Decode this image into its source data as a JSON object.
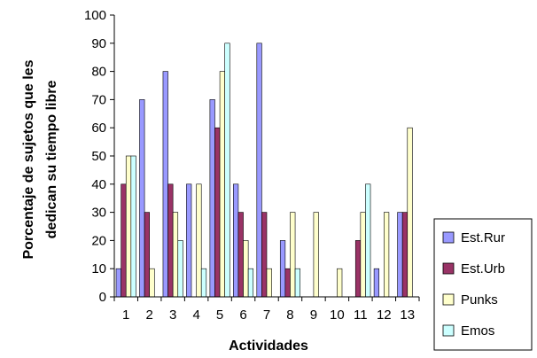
{
  "chart_data": {
    "type": "bar",
    "title": "",
    "xlabel": "Actividades",
    "ylabel_lines": [
      "Porcentaje de sujetos que les",
      "dedican su tiempo libre"
    ],
    "ylim": [
      0,
      100
    ],
    "yticks": [
      0,
      10,
      20,
      30,
      40,
      50,
      60,
      70,
      80,
      90,
      100
    ],
    "grid": false,
    "legend_position": "bottom-right",
    "categories": [
      "1",
      "2",
      "3",
      "4",
      "5",
      "6",
      "7",
      "8",
      "9",
      "10",
      "11",
      "12",
      "13"
    ],
    "series": [
      {
        "name": "Est.Rur",
        "color": "#9999FF",
        "values": [
          10,
          70,
          80,
          40,
          70,
          40,
          90,
          20,
          0,
          0,
          0,
          10,
          30
        ]
      },
      {
        "name": "Est.Urb",
        "color": "#993366",
        "values": [
          40,
          30,
          40,
          0,
          60,
          30,
          30,
          10,
          0,
          0,
          20,
          0,
          30
        ]
      },
      {
        "name": "Punks",
        "color": "#FFFFCC",
        "values": [
          50,
          10,
          30,
          40,
          80,
          20,
          10,
          30,
          30,
          10,
          30,
          30,
          60
        ]
      },
      {
        "name": "Emos",
        "color": "#CCFFFF",
        "values": [
          50,
          0,
          20,
          10,
          90,
          10,
          0,
          10,
          0,
          0,
          40,
          0,
          0
        ]
      }
    ]
  }
}
